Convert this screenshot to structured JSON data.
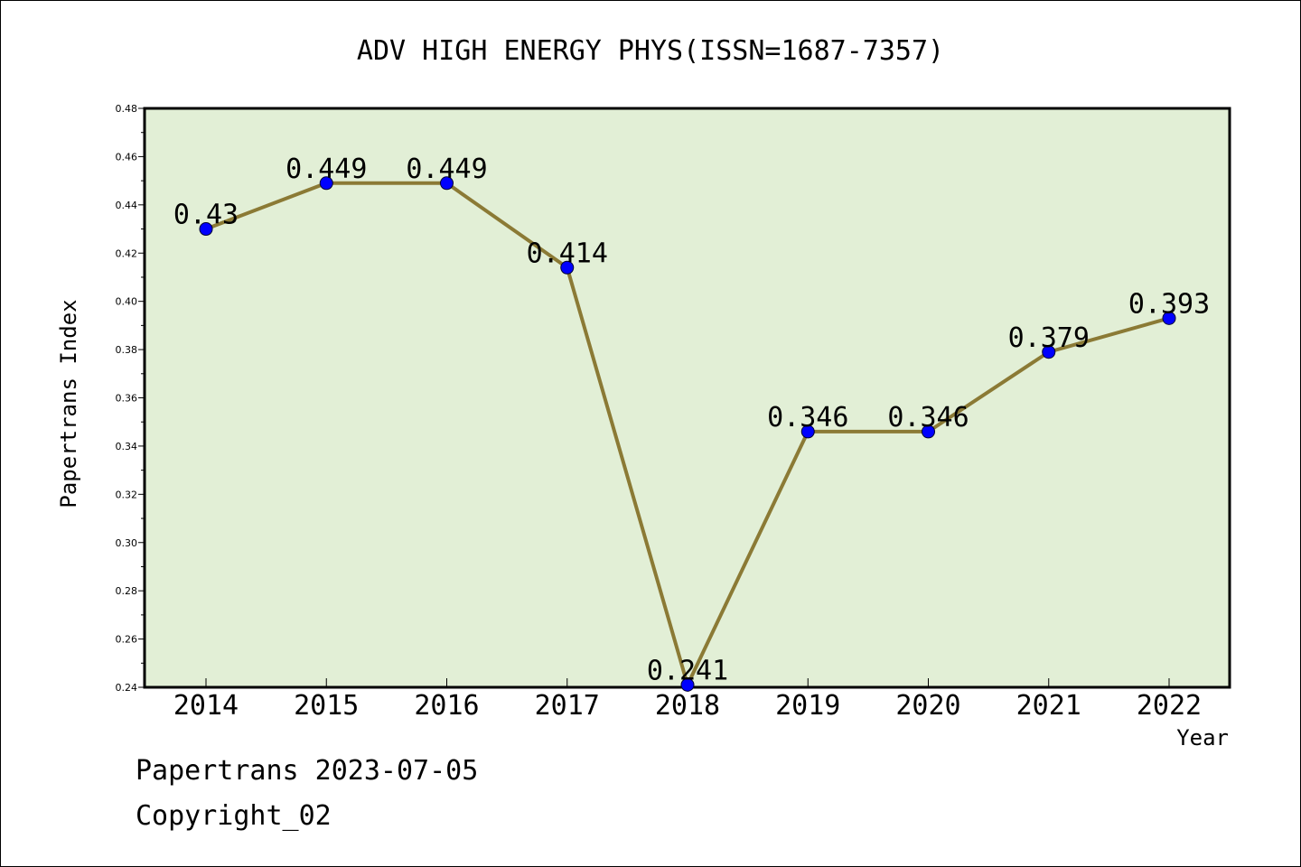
{
  "chart_data": {
    "type": "line",
    "title": "ADV HIGH ENERGY PHYS(ISSN=1687-7357)",
    "xlabel": "Year",
    "ylabel": "Papertrans Index",
    "categories": [
      "2014",
      "2015",
      "2016",
      "2017",
      "2018",
      "2019",
      "2020",
      "2021",
      "2022"
    ],
    "series": [
      {
        "values": [
          0.43,
          0.449,
          0.449,
          0.414,
          0.241,
          0.346,
          0.346,
          0.379,
          0.393
        ]
      }
    ],
    "data_labels": [
      "0.43",
      "0.449",
      "0.449",
      "0.414",
      "0.241",
      "0.346",
      "0.346",
      "0.379",
      "0.393"
    ],
    "ylim": [
      0.24,
      0.48
    ],
    "yticks": [
      "0.24",
      "0.26",
      "0.28",
      "0.30",
      "0.32",
      "0.34",
      "0.36",
      "0.38",
      "0.40",
      "0.42",
      "0.44",
      "0.46",
      "0.48"
    ],
    "grid": false,
    "colors": {
      "plot_background": "#e2efd6",
      "line": "#8b7a35",
      "marker": "#0000ff"
    }
  },
  "footer": {
    "line1": "Papertrans 2023-07-05",
    "line2": "Copyright_02"
  }
}
